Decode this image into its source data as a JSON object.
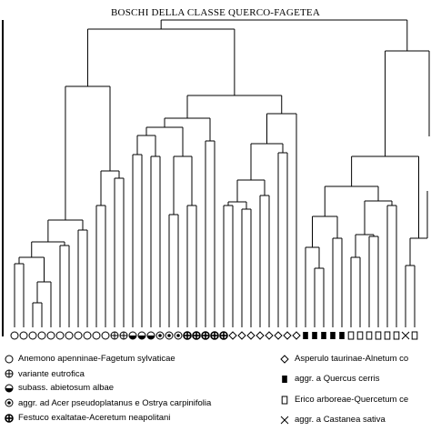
{
  "figure": {
    "title": "BOSCHI DELLA CLASSE QUERCO-FAGETEA"
  },
  "legend": {
    "left": [
      {
        "symbol": "circle-open",
        "label": "Anemono apenninae-Fagetum sylvaticae"
      },
      {
        "symbol": "circle-cross",
        "label": "variante eutrofica"
      },
      {
        "symbol": "circle-half",
        "label": "subass. abietosum albae"
      },
      {
        "symbol": "circle-dot",
        "label": "aggr. ad Acer pseudoplatanus e Ostrya carpinifolia"
      },
      {
        "symbol": "circle-plus-bold",
        "label": "Festuco exaltatae-Aceretum neapolitani"
      }
    ],
    "right": [
      {
        "symbol": "diamond-open",
        "label": "Asperulo taurinae-Alnetum co"
      },
      {
        "symbol": "square-filled",
        "label": "aggr. a Quercus cerris"
      },
      {
        "symbol": "square-open",
        "label": "Erico arboreae-Quercetum ce"
      },
      {
        "symbol": "x-mark",
        "label": "aggr. a Castanea sativa"
      }
    ]
  },
  "leaf_symbols": [
    "circle-open",
    "circle-open",
    "circle-open",
    "circle-open",
    "circle-open",
    "circle-open",
    "circle-open",
    "circle-open",
    "circle-open",
    "circle-open",
    "circle-open",
    "circle-cross",
    "circle-cross",
    "circle-half",
    "circle-half",
    "circle-half",
    "circle-dot",
    "circle-dot",
    "circle-dot",
    "circle-plus-bold",
    "circle-plus-bold",
    "circle-plus-bold",
    "circle-plus-bold",
    "circle-plus-bold",
    "diamond-open",
    "diamond-open",
    "diamond-open",
    "diamond-open",
    "diamond-open",
    "diamond-open",
    "diamond-open",
    "diamond-open",
    "square-filled",
    "square-filled",
    "square-filled",
    "square-filled",
    "square-filled",
    "square-open",
    "square-open",
    "square-open",
    "square-open",
    "square-open",
    "square-open",
    "x-mark",
    "square-open"
  ]
}
